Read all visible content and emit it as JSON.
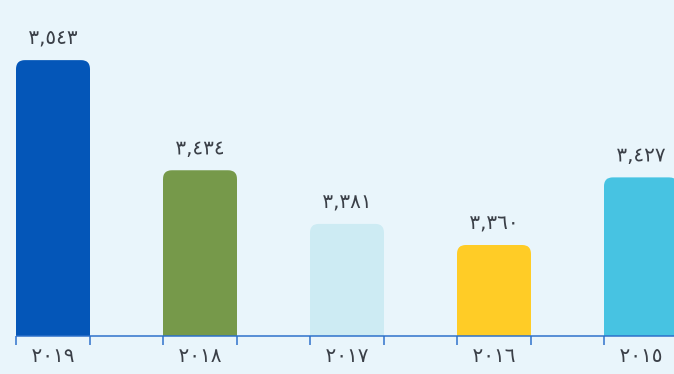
{
  "chart_data": {
    "type": "bar",
    "categories": [
      "٢٠١٩",
      "٢٠١٨",
      "٢٠١٧",
      "٢٠١٦",
      "٢٠١٥"
    ],
    "values": [
      3543,
      3434,
      3381,
      3360,
      3427
    ],
    "value_labels": [
      "٣,٥٤٣",
      "٣,٤٣٤",
      "٣,٣٨١",
      "٣,٣٦٠",
      "٣,٤٢٧"
    ],
    "bar_colors": [
      "#0456b8",
      "#76994a",
      "#cdebf3",
      "#ffcc26",
      "#47c3e2"
    ],
    "axis_color": "#2a6fc9",
    "background": "#e9f5fb",
    "title": "",
    "xlabel": "",
    "ylabel": "",
    "ylim": [
      3270,
      3555
    ],
    "grid": false,
    "legend": "none"
  }
}
